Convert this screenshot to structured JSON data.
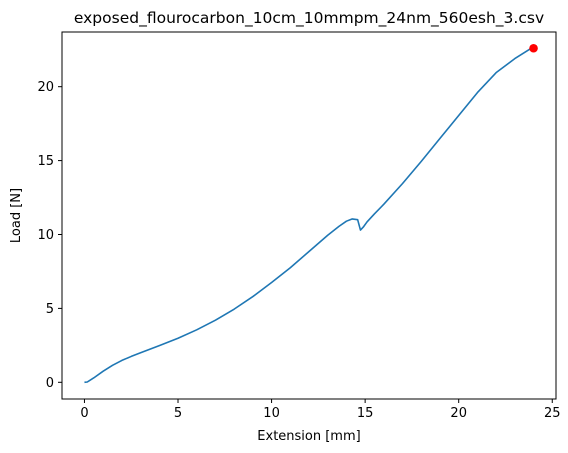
{
  "chart_data": {
    "type": "line",
    "title": "exposed_flourocarbon_10cm_10mmpm_24nm_560esh_3.csv",
    "xlabel": "Extension [mm]",
    "ylabel": "Load [N]",
    "xlim": [
      -1.2,
      25.2
    ],
    "ylim": [
      -1.13,
      23.7
    ],
    "xticks": [
      0,
      5,
      10,
      15,
      20,
      25
    ],
    "yticks": [
      0,
      5,
      10,
      15,
      20
    ],
    "grid": false,
    "series": [
      {
        "color": "#1f77b4",
        "x": [
          0,
          0.15,
          0.5,
          1.0,
          1.5,
          2.0,
          2.5,
          3.0,
          4.0,
          5.0,
          6.0,
          7.0,
          8.0,
          9.0,
          10.0,
          11.0,
          12.0,
          13.0,
          13.6,
          14.0,
          14.3,
          14.6,
          14.75,
          14.9,
          15.1,
          15.5,
          16.0,
          17.0,
          18.0,
          19.0,
          20.0,
          21.0,
          22.0,
          23.0,
          24.0
        ],
        "y": [
          0,
          0.02,
          0.3,
          0.75,
          1.15,
          1.48,
          1.75,
          2.0,
          2.48,
          2.98,
          3.55,
          4.2,
          4.95,
          5.8,
          6.75,
          7.75,
          8.85,
          9.95,
          10.55,
          10.9,
          11.05,
          11.0,
          10.3,
          10.5,
          10.85,
          11.4,
          12.05,
          13.45,
          14.95,
          16.5,
          18.05,
          19.6,
          20.95,
          21.9,
          22.7
        ]
      }
    ],
    "marker": {
      "x": 24.0,
      "y": 22.6,
      "color": "#ff0000"
    }
  }
}
